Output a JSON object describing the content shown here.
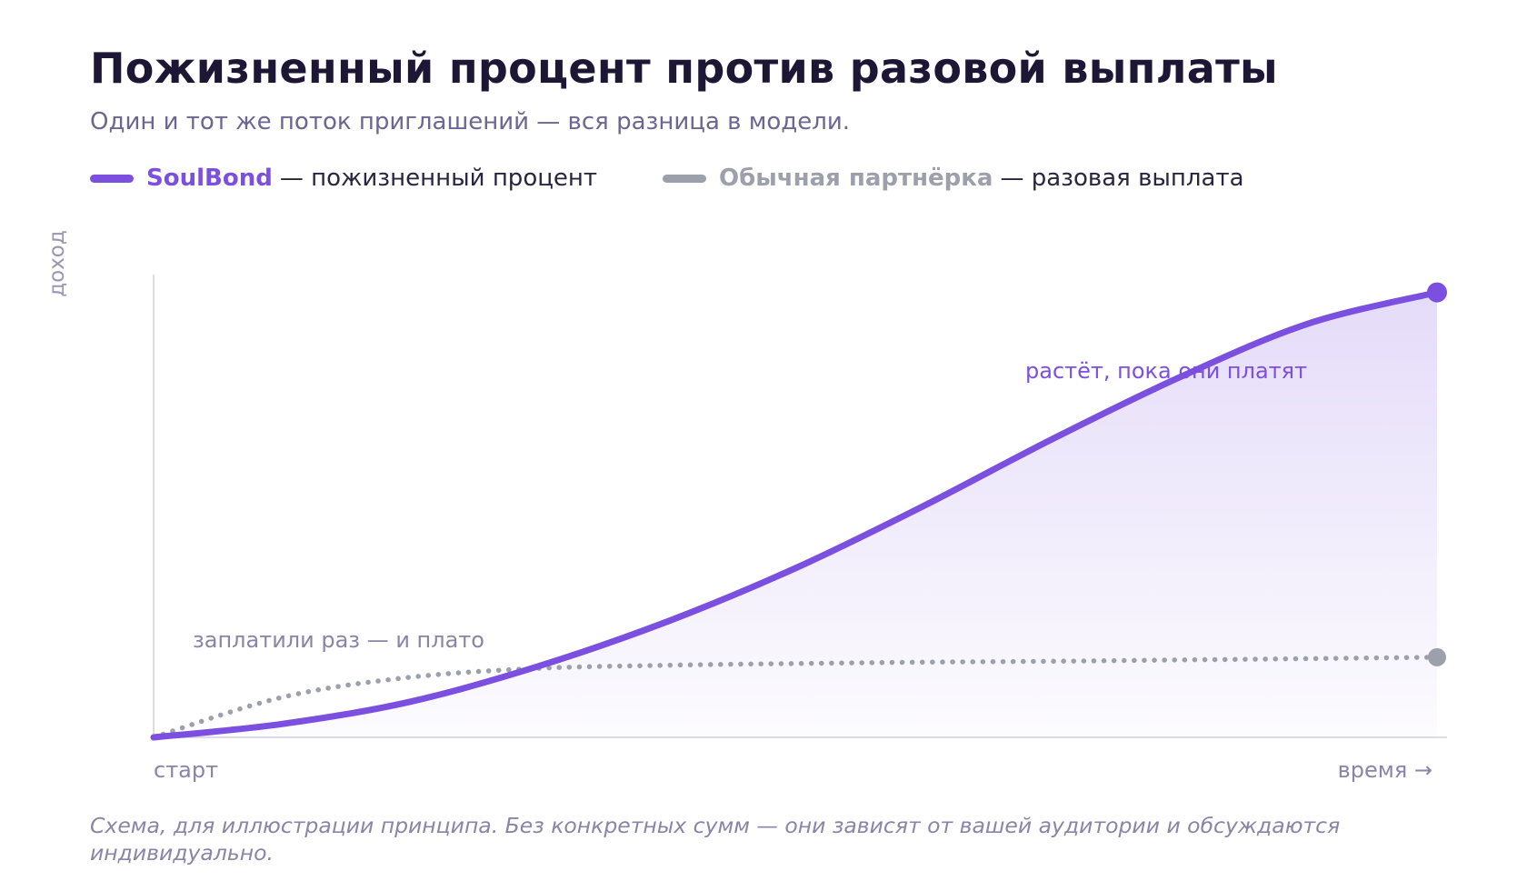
{
  "title": "Пожизненный процент против разовой выплаты",
  "subtitle": "Один и тот же поток приглашений — вся разница в модели.",
  "legend": [
    {
      "name": "SoulBond",
      "desc": "— пожизненный процент",
      "color": "#7b4fe0"
    },
    {
      "name": "Обычная партнёрка",
      "desc": "— разовая выплата",
      "color": "#9ca0ab"
    }
  ],
  "footnote": "Схема, для иллюстрации принципа. Без конкретных сумм — они зависят от вашей аудитории и обсуждаются индивидуально.",
  "chart_data": {
    "type": "line",
    "ylabel": "доход",
    "x_start_label": "старт",
    "x_end_label": "время →",
    "xlim": [
      0,
      1
    ],
    "ylim": [
      0,
      1.04
    ],
    "grid": false,
    "series": [
      {
        "name": "SoulBond",
        "style": "solid",
        "fill": true,
        "color": "#7b4fe0",
        "annotation": "растёт, пока они платят",
        "x": [
          0,
          0.1,
          0.2,
          0.3,
          0.4,
          0.5,
          0.6,
          0.7,
          0.8,
          0.9,
          1.0
        ],
        "y": [
          0,
          0.03,
          0.08,
          0.16,
          0.26,
          0.38,
          0.52,
          0.67,
          0.81,
          0.93,
          1.0
        ]
      },
      {
        "name": "Обычная партнёрка",
        "style": "dotted",
        "fill": false,
        "color": "#9ca0ab",
        "annotation": "заплатили раз — и плато",
        "x": [
          0,
          0.1,
          0.2,
          0.3,
          0.4,
          0.5,
          0.6,
          0.7,
          0.8,
          0.9,
          1.0
        ],
        "y": [
          0,
          0.09,
          0.135,
          0.155,
          0.162,
          0.166,
          0.169,
          0.171,
          0.174,
          0.177,
          0.18
        ]
      }
    ]
  }
}
